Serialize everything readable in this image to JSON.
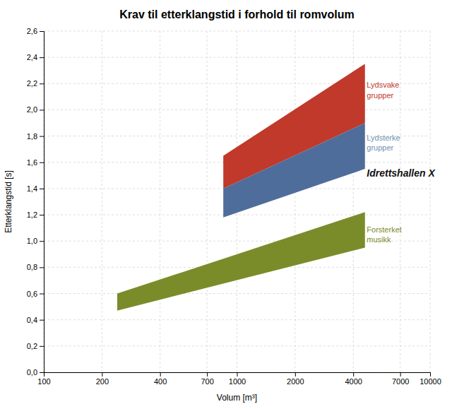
{
  "chart_data": {
    "type": "band",
    "title": "Krav til etterklangstid i forhold til romvolum",
    "xlabel": "Volum [m³]",
    "ylabel": "Etterklangstid [s]",
    "log": "x",
    "grid": true,
    "xlim": [
      100,
      10000
    ],
    "ylim": [
      0,
      2.6
    ],
    "xticks": [
      100,
      200,
      400,
      700,
      1000,
      2000,
      4000,
      7000,
      10000
    ],
    "yticks": [
      {
        "value": 0,
        "label": "0,0"
      },
      {
        "value": 0.2,
        "label": "0,2"
      },
      {
        "value": 0.4,
        "label": "0,4"
      },
      {
        "value": 0.6,
        "label": "0,6"
      },
      {
        "value": 0.8,
        "label": "0,8"
      },
      {
        "value": 1.0,
        "label": "1,0"
      },
      {
        "value": 1.2,
        "label": "1,2"
      },
      {
        "value": 1.4,
        "label": "1,4"
      },
      {
        "value": 1.6,
        "label": "1,6"
      },
      {
        "value": 1.8,
        "label": "1,8"
      },
      {
        "value": 2.0,
        "label": "2,0"
      },
      {
        "value": 2.2,
        "label": "2,2"
      },
      {
        "value": 2.4,
        "label": "2,4"
      },
      {
        "value": 2.6,
        "label": "2,6"
      }
    ],
    "series": [
      {
        "name": "Lydsvake\ngrupper",
        "color": "#c0392b",
        "label_color": "#c0392b",
        "x": [
          850,
          4600
        ],
        "lower": [
          1.4,
          1.9
        ],
        "upper": [
          1.65,
          2.35
        ],
        "label_x": 4700,
        "label_y": 2.15
      },
      {
        "name": "Lydsterke\ngrupper",
        "color": "#4f6d9a",
        "label_color": "#7090b0",
        "x": [
          850,
          4600
        ],
        "lower": [
          1.18,
          1.55
        ],
        "upper": [
          1.4,
          1.9
        ],
        "label_x": 4700,
        "label_y": 1.75
      },
      {
        "name": "Forsterket\nmusikk",
        "color": "#7a8c2a",
        "label_color": "#7a8c2a",
        "x": [
          240,
          4600
        ],
        "lower": [
          0.47,
          0.95
        ],
        "upper": [
          0.6,
          1.22
        ],
        "label_x": 4700,
        "label_y": 1.05
      }
    ],
    "annotations": [
      {
        "text": "Idrettshallen X",
        "x": 4700,
        "y": 1.52,
        "color": "#111111"
      }
    ]
  }
}
